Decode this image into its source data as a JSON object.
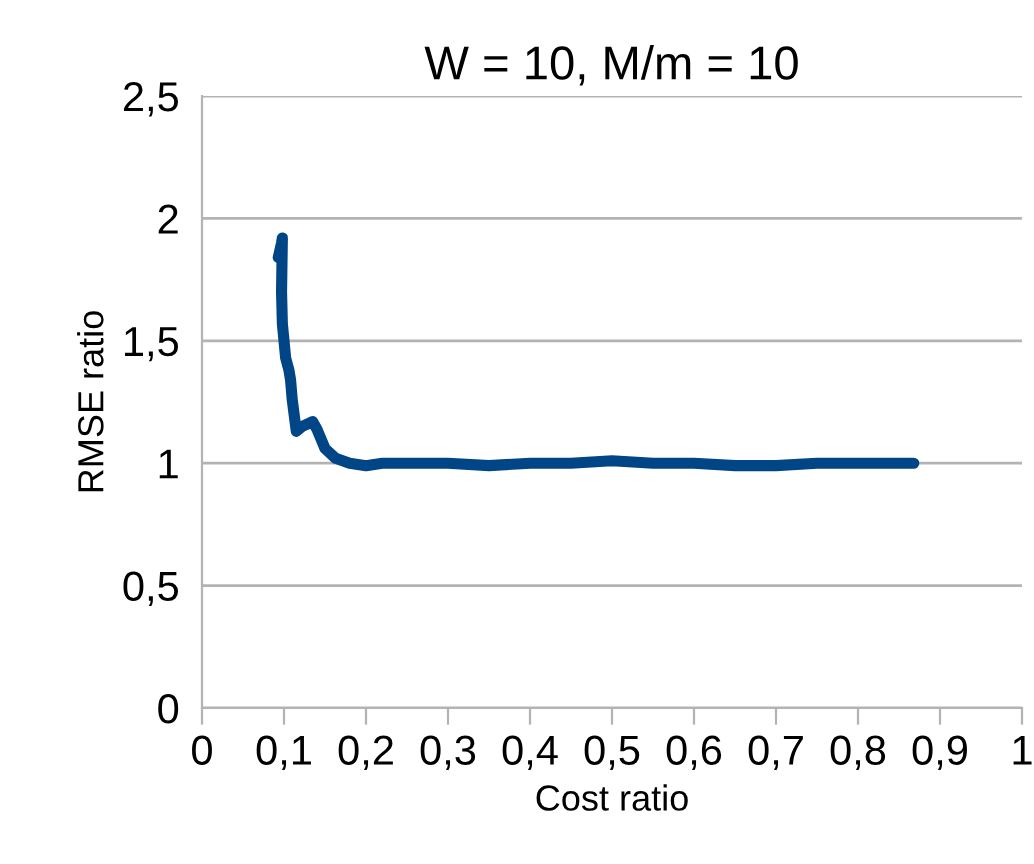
{
  "chart_data": {
    "type": "line",
    "title": "W = 10, M/m = 10",
    "xlabel": "Cost ratio",
    "ylabel": "RMSE ratio",
    "series": [
      {
        "color": "#004586",
        "x": [
          0.093,
          0.097,
          0.098,
          0.097,
          0.098,
          0.1,
          0.102,
          0.106,
          0.108,
          0.11,
          0.115,
          0.122,
          0.135,
          0.14,
          0.15,
          0.163,
          0.18,
          0.2,
          0.22,
          0.25,
          0.3,
          0.35,
          0.4,
          0.45,
          0.5,
          0.55,
          0.6,
          0.65,
          0.7,
          0.75,
          0.8,
          0.868
        ],
        "values": [
          1.84,
          1.9,
          1.92,
          1.7,
          1.57,
          1.5,
          1.43,
          1.38,
          1.34,
          1.26,
          1.13,
          1.15,
          1.17,
          1.14,
          1.06,
          1.02,
          1.0,
          0.99,
          1.0,
          1.0,
          1.0,
          0.99,
          1.0,
          1.0,
          1.01,
          1.0,
          1.0,
          0.99,
          0.99,
          1.0,
          1.0,
          1.0
        ]
      }
    ],
    "xlim": [
      0,
      1
    ],
    "ylim": [
      0,
      2.5
    ],
    "xticks": [
      0,
      {
        "value": 0.1,
        "label": "0,1"
      },
      {
        "value": 0.2,
        "label": "0,2"
      },
      {
        "value": 0.3,
        "label": "0,3"
      },
      {
        "value": 0.4,
        "label": "0,4"
      },
      {
        "value": 0.5,
        "label": "0,5"
      },
      {
        "value": 0.6,
        "label": "0,6"
      },
      {
        "value": 0.7,
        "label": "0,7"
      },
      {
        "value": 0.8,
        "label": "0,8"
      },
      {
        "value": 0.9,
        "label": "0,9"
      },
      1
    ],
    "yticks": [
      0,
      {
        "value": 0.5,
        "label": "0,5"
      },
      1,
      {
        "value": 1.5,
        "label": "1,5"
      },
      2,
      {
        "value": 2.5,
        "label": "2,5"
      }
    ],
    "grid": "y",
    "legend": false,
    "marker": "none",
    "line_style": "solid"
  }
}
